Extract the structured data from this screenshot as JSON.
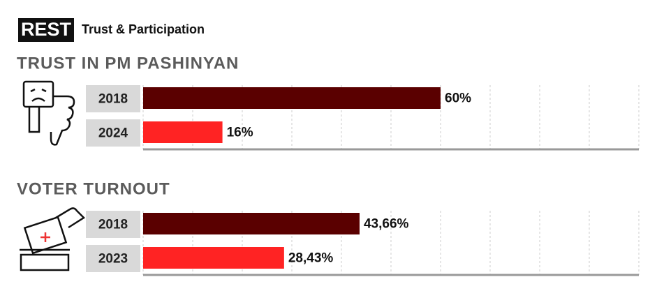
{
  "header": {
    "logo": "REST",
    "title": "Trust & Participation"
  },
  "chart_data": [
    {
      "type": "bar",
      "orientation": "horizontal",
      "title": "TRUST IN PM PASHINYAN",
      "categories": [
        "2018",
        "2024"
      ],
      "values": [
        60,
        16
      ],
      "value_labels": [
        "60%",
        "16%"
      ],
      "colors": [
        "#5a0000",
        "#ff2323"
      ],
      "xlim": [
        0,
        100
      ],
      "xticks": [
        0,
        10,
        20,
        30,
        40,
        50,
        60,
        70,
        80,
        90,
        100
      ],
      "grid": true
    },
    {
      "type": "bar",
      "orientation": "horizontal",
      "title": "VOTER TURNOUT",
      "categories": [
        "2018",
        "2023"
      ],
      "values": [
        43.66,
        28.43
      ],
      "value_labels": [
        "43,66%",
        "28,43%"
      ],
      "colors": [
        "#5a0000",
        "#ff2323"
      ],
      "xlim": [
        0,
        100
      ],
      "xticks": [
        0,
        10,
        20,
        30,
        40,
        50,
        60,
        70,
        80,
        90,
        100
      ],
      "grid": true
    }
  ]
}
